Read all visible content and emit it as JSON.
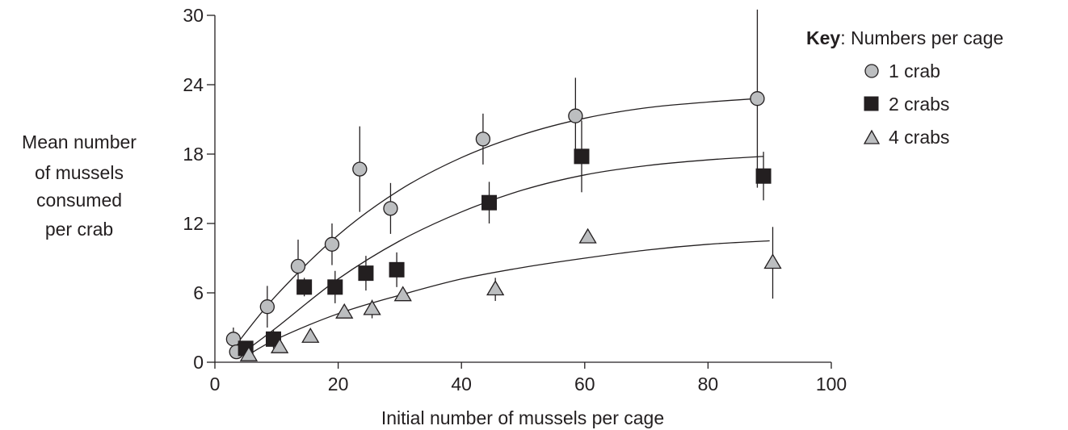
{
  "chart_data": {
    "type": "scatter",
    "xlabel": "Initial number of mussels per cage",
    "ylabel_lines": [
      "Mean number",
      "of mussels",
      "consumed",
      "per crab"
    ],
    "xlim": [
      0,
      100
    ],
    "ylim": [
      0,
      30
    ],
    "x_ticks": [
      0,
      20,
      40,
      60,
      80,
      100
    ],
    "y_ticks": [
      0,
      6,
      12,
      18,
      24,
      30
    ],
    "grid": false,
    "legend": {
      "placement": "top-right",
      "title_bold": "Key",
      "title_rest": ": Numbers per cage"
    },
    "series": [
      {
        "name": "1 crab",
        "marker": "circle",
        "color": "#bcbec0",
        "points": [
          {
            "x": 3,
            "y": 2.0,
            "err": 1.0
          },
          {
            "x": 3.5,
            "y": 0.9,
            "err": 0
          },
          {
            "x": 8.5,
            "y": 4.8,
            "err": 1.8
          },
          {
            "x": 13.5,
            "y": 8.3,
            "err": 2.3
          },
          {
            "x": 19,
            "y": 10.2,
            "err": 1.8
          },
          {
            "x": 23.5,
            "y": 16.7,
            "err": 3.7
          },
          {
            "x": 28.5,
            "y": 13.3,
            "err": 2.2
          },
          {
            "x": 43.5,
            "y": 19.3,
            "err": 2.2
          },
          {
            "x": 58.5,
            "y": 21.3,
            "err": 3.3
          },
          {
            "x": 88,
            "y": 22.8,
            "err": 7.7
          }
        ],
        "fit": [
          [
            3,
            1.2
          ],
          [
            10,
            5.8
          ],
          [
            20,
            11.0
          ],
          [
            30,
            14.9
          ],
          [
            40,
            17.7
          ],
          [
            50,
            19.7
          ],
          [
            60,
            21.1
          ],
          [
            70,
            22.0
          ],
          [
            80,
            22.5
          ],
          [
            88,
            22.8
          ]
        ]
      },
      {
        "name": "2 crabs",
        "marker": "square",
        "color": "#231f20",
        "points": [
          {
            "x": 5,
            "y": 1.2,
            "err": 0
          },
          {
            "x": 9.5,
            "y": 2.0,
            "err": 0.8
          },
          {
            "x": 14.5,
            "y": 6.5,
            "err": 0.8
          },
          {
            "x": 19.5,
            "y": 6.5,
            "err": 1.4
          },
          {
            "x": 24.5,
            "y": 7.7,
            "err": 1.5
          },
          {
            "x": 29.5,
            "y": 8.0,
            "err": 1.5
          },
          {
            "x": 44.5,
            "y": 13.8,
            "err": 1.8
          },
          {
            "x": 59.5,
            "y": 17.8,
            "err": 3.1
          },
          {
            "x": 89,
            "y": 16.1,
            "err": 2.1
          }
        ],
        "fit": [
          [
            5,
            1.0
          ],
          [
            10,
            3.0
          ],
          [
            20,
            7.2
          ],
          [
            30,
            10.5
          ],
          [
            40,
            13.0
          ],
          [
            50,
            14.9
          ],
          [
            60,
            16.2
          ],
          [
            70,
            17.0
          ],
          [
            80,
            17.5
          ],
          [
            89,
            17.8
          ]
        ]
      },
      {
        "name": "4 crabs",
        "marker": "triangle",
        "color": "#bcbec0",
        "points": [
          {
            "x": 5.5,
            "y": 0.6,
            "err": 0
          },
          {
            "x": 10.5,
            "y": 1.3,
            "err": 0
          },
          {
            "x": 15.5,
            "y": 2.2,
            "err": 0
          },
          {
            "x": 21,
            "y": 4.3,
            "err": 0
          },
          {
            "x": 25.5,
            "y": 4.6,
            "err": 0.8
          },
          {
            "x": 30.5,
            "y": 5.8,
            "err": 0
          },
          {
            "x": 45.5,
            "y": 6.3,
            "err": 1.0
          },
          {
            "x": 60.5,
            "y": 10.8,
            "err": 0
          },
          {
            "x": 90.5,
            "y": 8.6,
            "err": 3.1
          }
        ],
        "fit": [
          [
            5,
            0.5
          ],
          [
            10,
            2.0
          ],
          [
            20,
            4.2
          ],
          [
            30,
            5.8
          ],
          [
            40,
            7.2
          ],
          [
            50,
            8.2
          ],
          [
            60,
            9.0
          ],
          [
            70,
            9.7
          ],
          [
            80,
            10.2
          ],
          [
            90,
            10.5
          ]
        ]
      }
    ]
  }
}
